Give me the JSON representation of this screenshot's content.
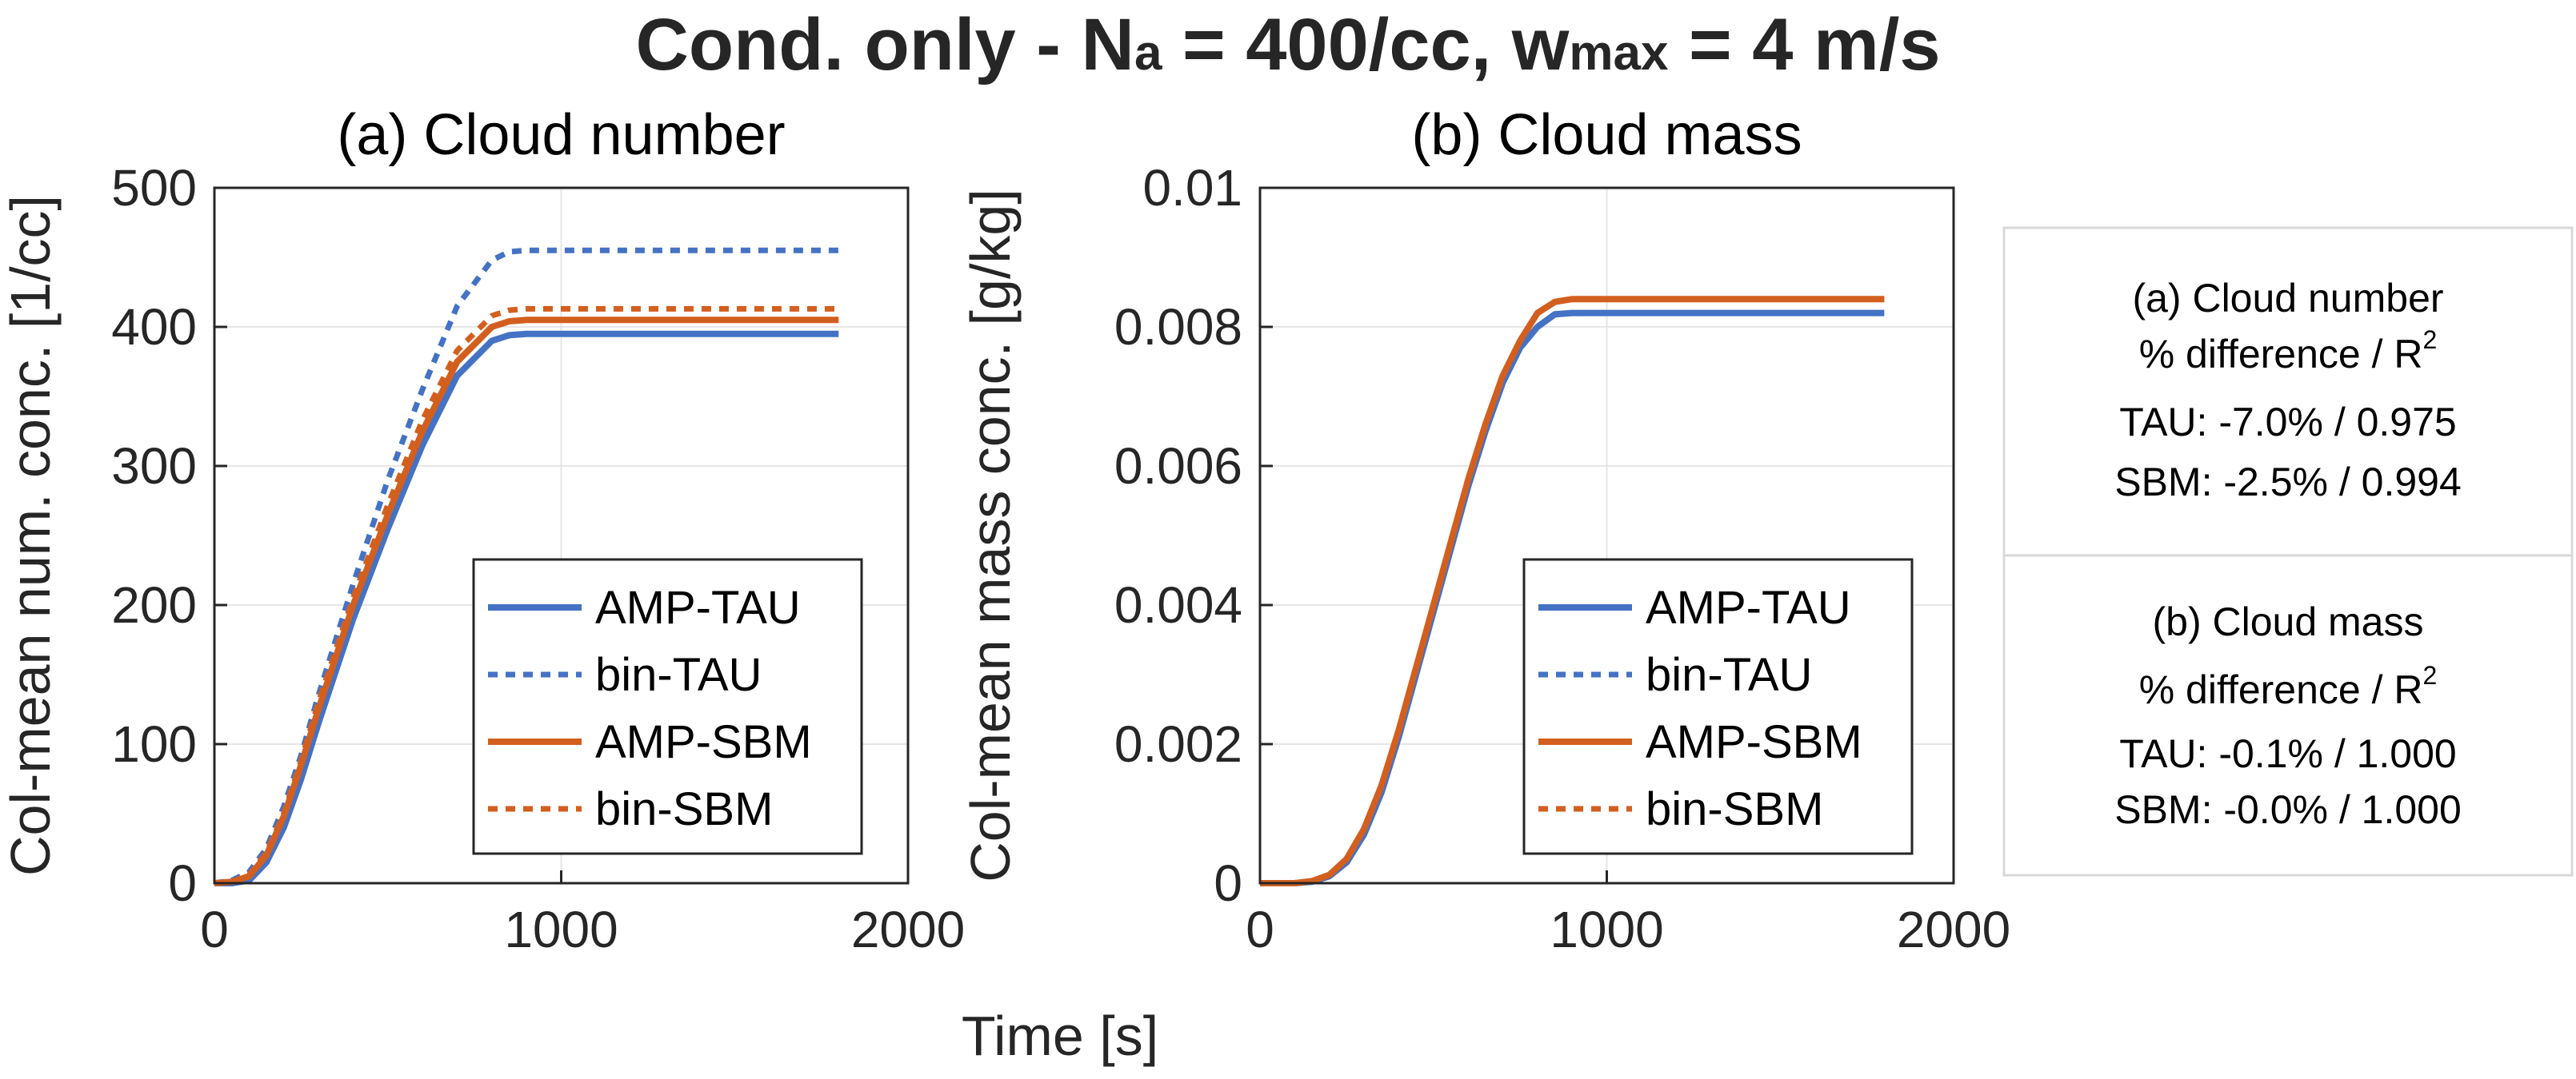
{
  "figure": {
    "title": {
      "prefix": "Cond. only - N",
      "na_sub": "a",
      "middle": " = 400/cc, w",
      "w_sub": "max",
      "suffix": " = 4 m/s"
    },
    "shared_xlabel": "Time [s]"
  },
  "colors": {
    "tau": "#4472C4",
    "sbm": "#D35F1F",
    "axis": "#262626",
    "grid": "#e6e6e6"
  },
  "legend_entries": [
    {
      "label": "AMP-TAU",
      "color": "#4472C4",
      "style": "solid"
    },
    {
      "label": "bin-TAU",
      "color": "#4472C4",
      "style": "dotted"
    },
    {
      "label": "AMP-SBM",
      "color": "#D35F1F",
      "style": "solid"
    },
    {
      "label": "bin-SBM",
      "color": "#D35F1F",
      "style": "dotted"
    }
  ],
  "chart_data": [
    {
      "type": "line",
      "title": "(a) Cloud number",
      "xlabel": "",
      "ylabel": "Col-mean num. conc. [1/cc]",
      "xlim": [
        0,
        2000
      ],
      "ylim": [
        0,
        500
      ],
      "xticks": [
        "0",
        "1000",
        "2000"
      ],
      "yticks": [
        "0",
        "100",
        "200",
        "300",
        "400",
        "500"
      ],
      "grid": true,
      "legend_position": "bottom-right",
      "series": [
        {
          "name": "AMP-TAU",
          "style": "solid",
          "color": "#4472C4",
          "x": [
            0,
            50,
            100,
            150,
            200,
            250,
            300,
            400,
            500,
            600,
            700,
            800,
            850,
            900,
            1000,
            1200,
            1500,
            1800
          ],
          "y": [
            0,
            0,
            2,
            15,
            40,
            75,
            115,
            190,
            255,
            315,
            365,
            390,
            394,
            395,
            395,
            395,
            395,
            395
          ]
        },
        {
          "name": "bin-TAU",
          "style": "dotted",
          "color": "#4472C4",
          "x": [
            0,
            50,
            100,
            150,
            200,
            250,
            300,
            400,
            500,
            600,
            700,
            800,
            850,
            900,
            1000,
            1200,
            1500,
            1800
          ],
          "y": [
            0,
            2,
            8,
            25,
            55,
            92,
            135,
            215,
            290,
            355,
            415,
            448,
            454,
            455,
            455,
            455,
            455,
            455
          ]
        },
        {
          "name": "AMP-SBM",
          "style": "solid",
          "color": "#D35F1F",
          "x": [
            0,
            50,
            100,
            150,
            200,
            250,
            300,
            400,
            500,
            600,
            700,
            800,
            850,
            900,
            1000,
            1200,
            1500,
            1800
          ],
          "y": [
            0,
            1,
            5,
            20,
            48,
            85,
            125,
            200,
            265,
            325,
            375,
            400,
            404,
            405,
            405,
            405,
            405,
            405
          ]
        },
        {
          "name": "bin-SBM",
          "style": "dotted",
          "color": "#D35F1F",
          "x": [
            0,
            50,
            100,
            150,
            200,
            250,
            300,
            400,
            500,
            600,
            700,
            800,
            850,
            900,
            1000,
            1200,
            1500,
            1800
          ],
          "y": [
            0,
            1,
            6,
            22,
            50,
            88,
            130,
            205,
            272,
            333,
            383,
            408,
            412,
            413,
            413,
            413,
            413,
            413
          ]
        }
      ]
    },
    {
      "type": "line",
      "title": "(b) Cloud mass",
      "xlabel": "",
      "ylabel": "Col-mean mass conc. [g/kg]",
      "xlim": [
        0,
        2000
      ],
      "ylim": [
        0,
        0.01
      ],
      "xticks": [
        "0",
        "1000",
        "2000"
      ],
      "yticks": [
        "0",
        "0.002",
        "0.004",
        "0.006",
        "0.008",
        "0.01"
      ],
      "grid": true,
      "legend_position": "bottom-right",
      "series": [
        {
          "name": "AMP-TAU",
          "style": "solid",
          "color": "#4472C4",
          "x": [
            0,
            100,
            150,
            200,
            250,
            300,
            350,
            400,
            450,
            500,
            550,
            600,
            650,
            700,
            750,
            800,
            850,
            900,
            1000,
            1400,
            1800
          ],
          "y": [
            0,
            0,
            2e-05,
            0.0001,
            0.0003,
            0.0007,
            0.0013,
            0.0021,
            0.003,
            0.0039,
            0.0048,
            0.0057,
            0.0065,
            0.0072,
            0.0077,
            0.008,
            0.00818,
            0.0082,
            0.0082,
            0.0082,
            0.0082
          ]
        },
        {
          "name": "bin-TAU",
          "style": "dotted",
          "color": "#4472C4",
          "x": [
            0,
            100,
            150,
            200,
            250,
            300,
            350,
            400,
            450,
            500,
            550,
            600,
            650,
            700,
            750,
            800,
            850,
            900,
            1000,
            1400,
            1800
          ],
          "y": [
            0,
            0,
            2e-05,
            0.0001,
            0.0003,
            0.0007,
            0.0013,
            0.0021,
            0.003,
            0.0039,
            0.0048,
            0.0057,
            0.0065,
            0.0072,
            0.0077,
            0.008,
            0.00818,
            0.0082,
            0.0082,
            0.0082,
            0.0082
          ]
        },
        {
          "name": "AMP-SBM",
          "style": "solid",
          "color": "#D35F1F",
          "x": [
            0,
            100,
            150,
            200,
            250,
            300,
            350,
            400,
            450,
            500,
            550,
            600,
            650,
            700,
            750,
            800,
            850,
            900,
            1000,
            1400,
            1800
          ],
          "y": [
            0,
            0,
            3e-05,
            0.00012,
            0.00035,
            0.00078,
            0.0014,
            0.0022,
            0.0031,
            0.004,
            0.0049,
            0.0058,
            0.0066,
            0.0073,
            0.0078,
            0.0082,
            0.00836,
            0.0084,
            0.0084,
            0.0084,
            0.0084
          ]
        },
        {
          "name": "bin-SBM",
          "style": "dotted",
          "color": "#D35F1F",
          "x": [
            0,
            100,
            150,
            200,
            250,
            300,
            350,
            400,
            450,
            500,
            550,
            600,
            650,
            700,
            750,
            800,
            850,
            900,
            1000,
            1400,
            1800
          ],
          "y": [
            0,
            0,
            3e-05,
            0.00012,
            0.00035,
            0.00078,
            0.0014,
            0.0022,
            0.0031,
            0.004,
            0.0049,
            0.0058,
            0.0066,
            0.0073,
            0.0078,
            0.0082,
            0.00836,
            0.0084,
            0.0084,
            0.0084,
            0.0084
          ]
        }
      ]
    }
  ],
  "stats_box": {
    "number": {
      "title": "(a) Cloud number",
      "header": "% difference / R",
      "header_sup": "2",
      "tau": "TAU: -7.0% / 0.975",
      "sbm": "SBM: -2.5% / 0.994"
    },
    "mass": {
      "title": "(b) Cloud mass",
      "header": "% difference / R",
      "header_sup": "2",
      "tau": "TAU: -0.1% / 1.000",
      "sbm": "SBM: -0.0% / 1.000"
    }
  }
}
